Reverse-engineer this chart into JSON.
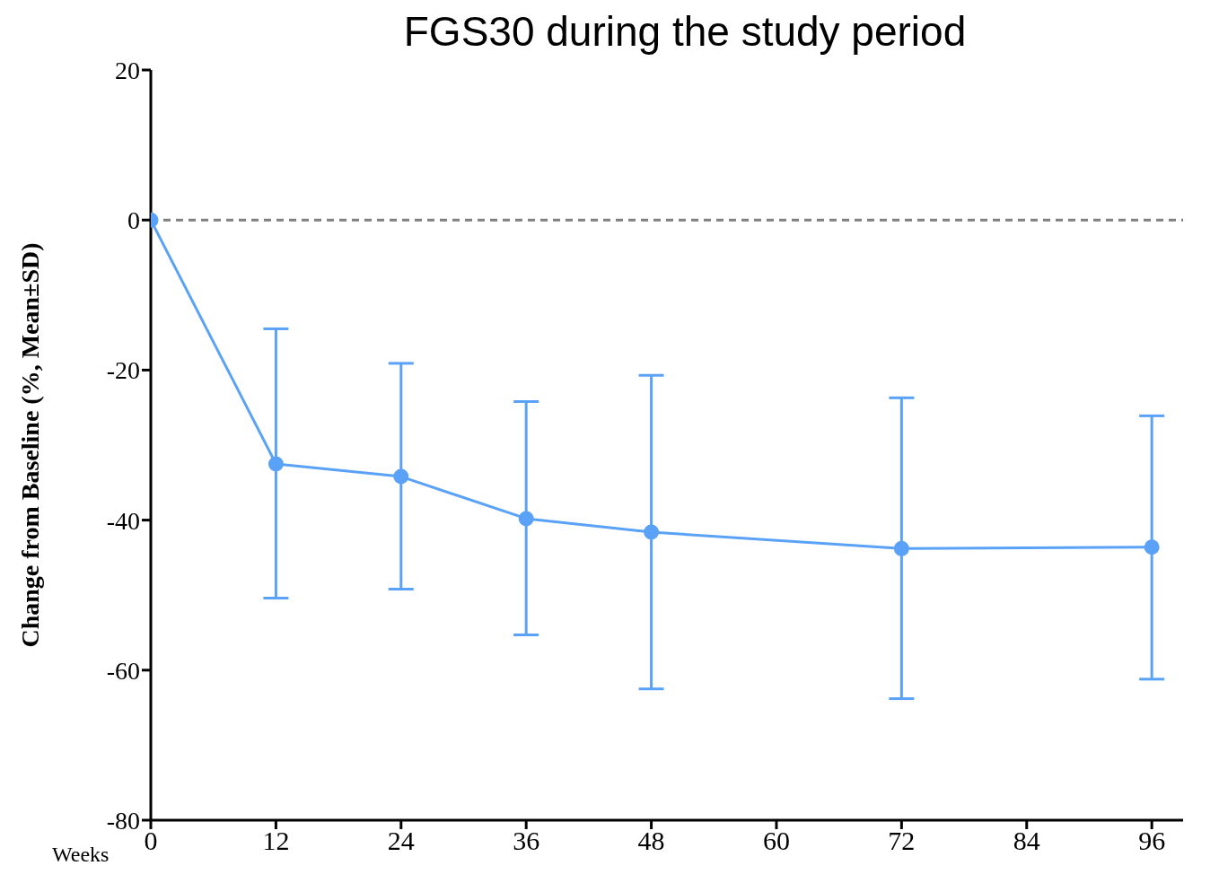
{
  "chart_data": {
    "type": "line",
    "title": "FGS30 during the study period",
    "xlabel": "Weeks",
    "ylabel": "Change from Baseline (%,  Mean±SD)",
    "x": [
      0,
      12,
      24,
      36,
      48,
      72,
      96
    ],
    "series": [
      {
        "color": "#5aa2f7",
        "values": [
          0,
          -32.5,
          -34.2,
          -39.8,
          -41.6,
          -43.8,
          -43.6
        ],
        "errors": [
          null,
          [
            -50.4,
            -14.5
          ],
          [
            -49.2,
            -19.1
          ],
          [
            -55.3,
            -24.2
          ],
          [
            -62.5,
            -20.7
          ],
          [
            -63.8,
            -23.7
          ],
          [
            -61.2,
            -26.1
          ]
        ]
      }
    ],
    "xlim": [
      0,
      99
    ],
    "xticks": [
      0,
      12,
      24,
      36,
      48,
      60,
      72,
      84,
      96
    ],
    "ylim": [
      -80,
      20
    ],
    "yticks": [
      -80,
      -60,
      -40,
      -20,
      0,
      20
    ],
    "ref_lines": [
      {
        "axis": "y",
        "value": 0,
        "color": "#808080",
        "line_style": "dashed"
      }
    ],
    "marker": "circle",
    "line_style": "solid",
    "grid": false,
    "legend": false
  }
}
